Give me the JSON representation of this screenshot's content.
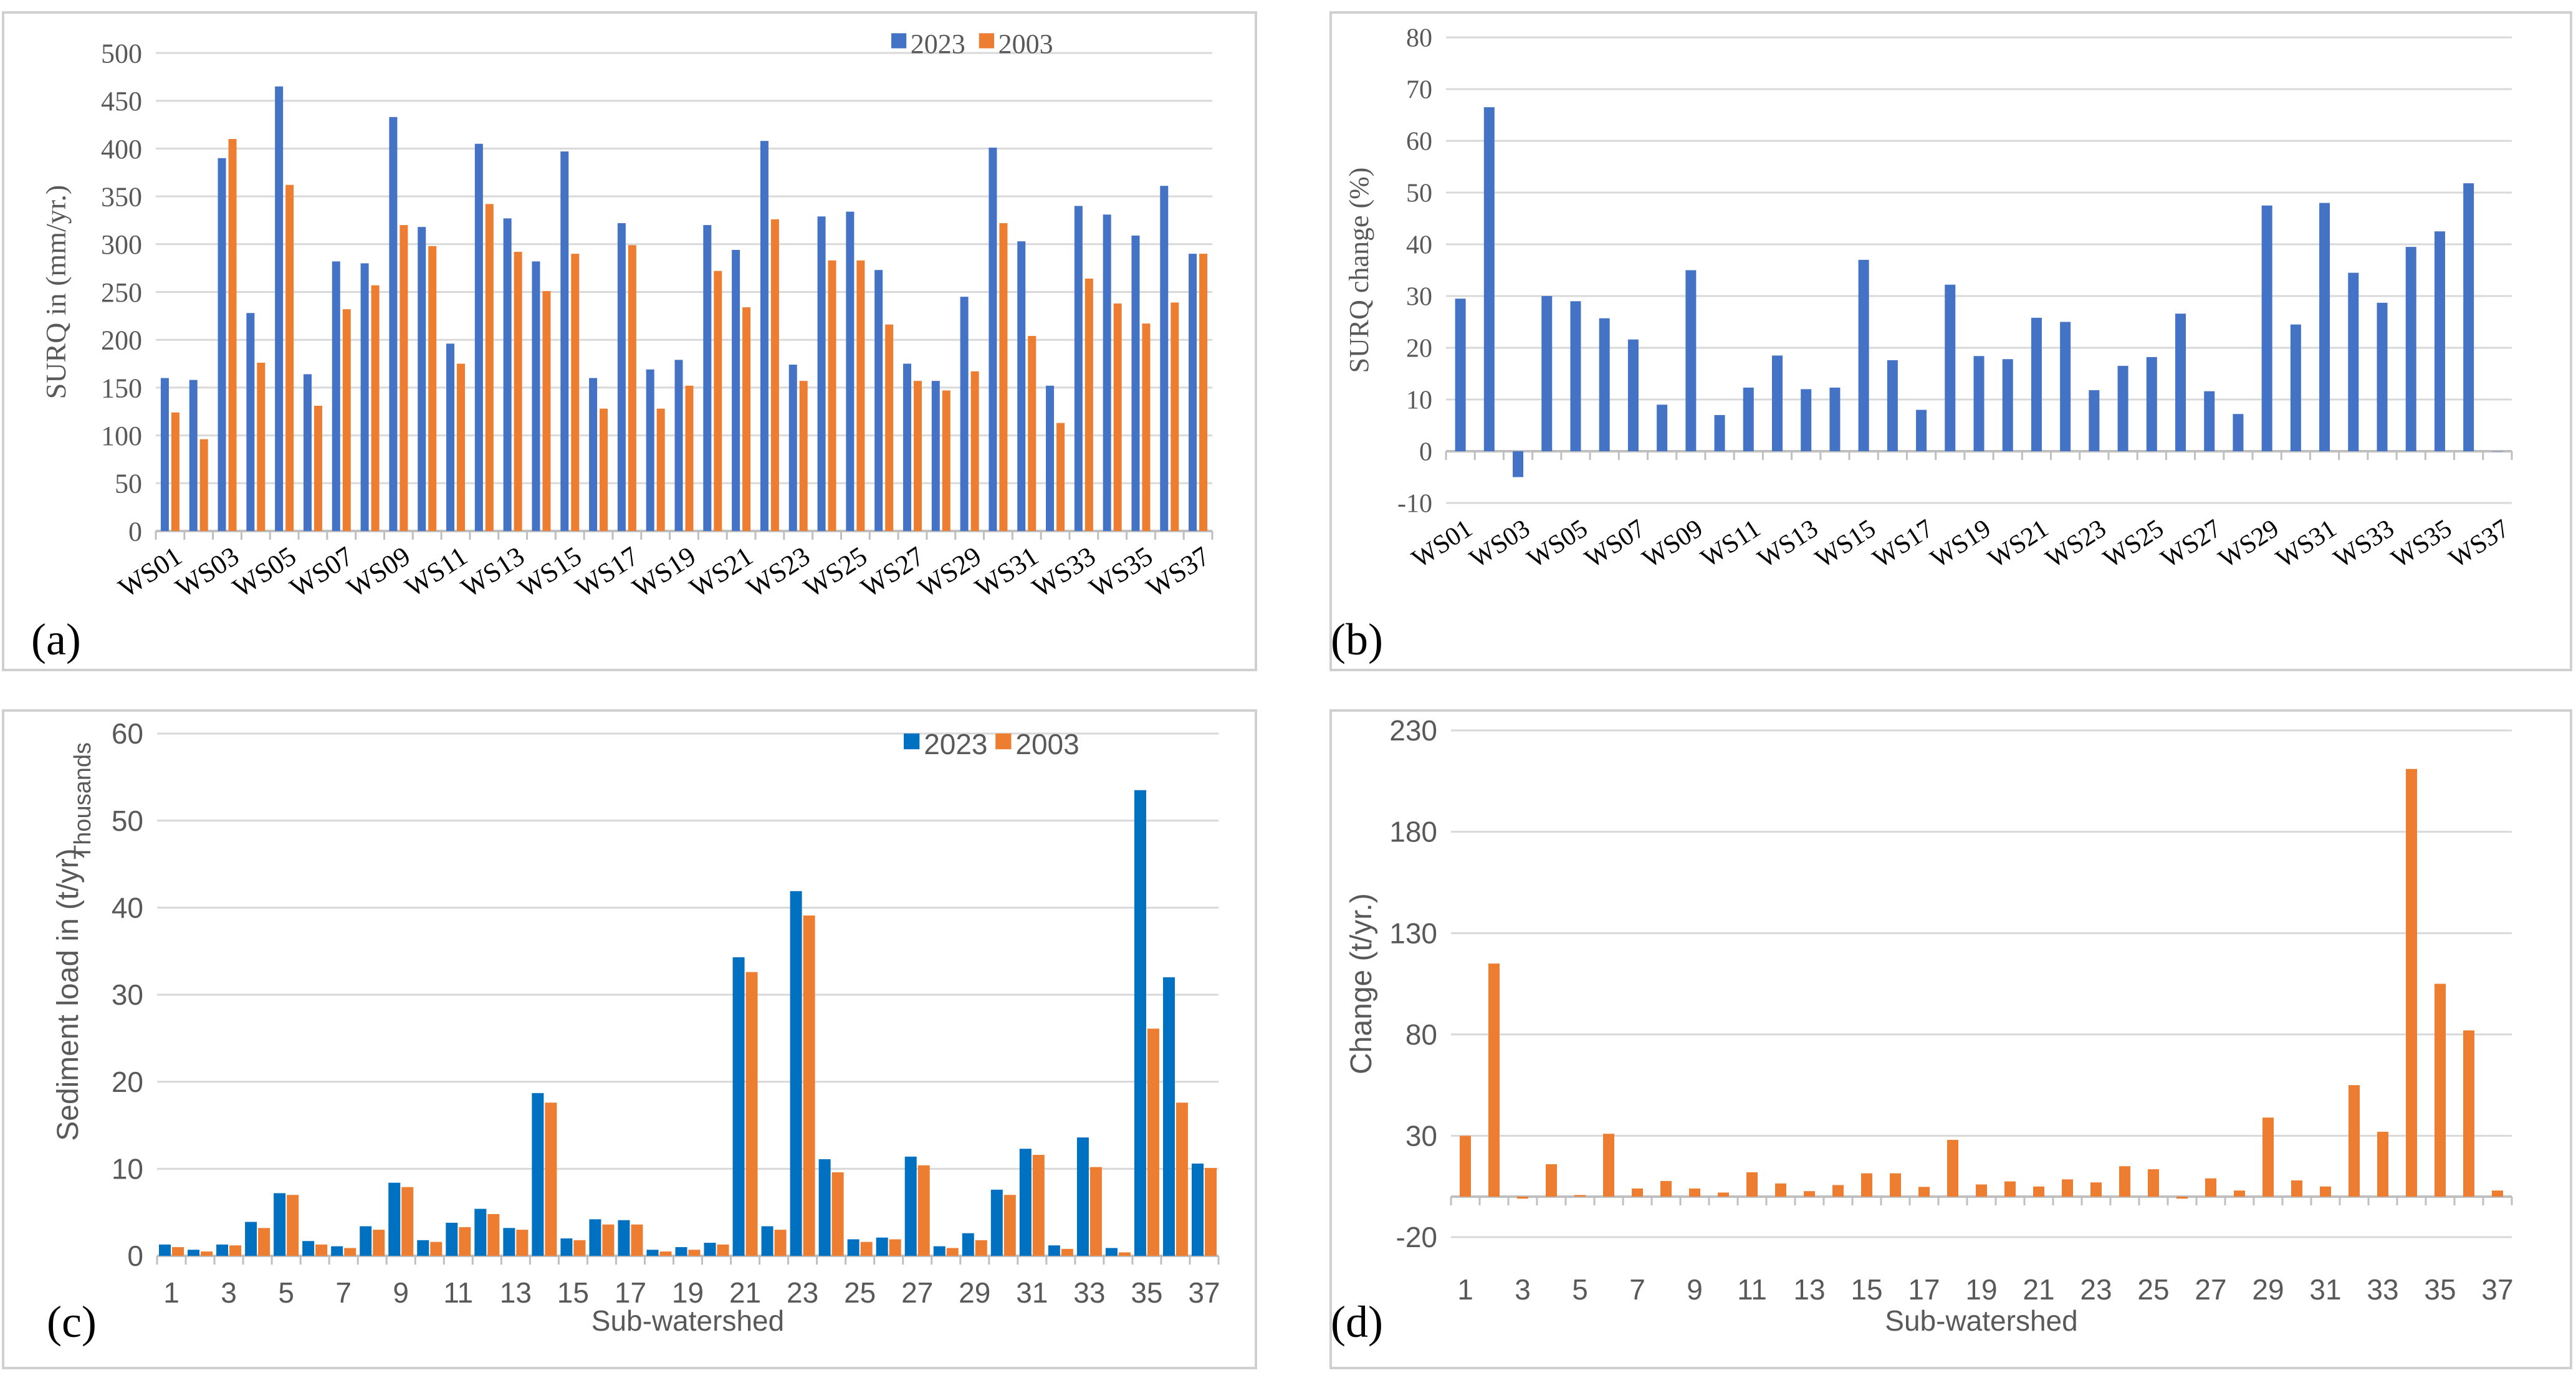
{
  "panels": {
    "a": "(a)",
    "b": "(b)",
    "c": "(c)",
    "d": "(d)"
  },
  "colors": {
    "series2023a": "#4472C4",
    "series2003": "#ED7D31",
    "series2023c": "#0070C0",
    "frame": "#D0D0D0",
    "gridline": "#D9D9D9",
    "axis": "#BFBFBF",
    "text": "#595959"
  },
  "chart_data": [
    {
      "id": "a",
      "type": "bar",
      "ylabel": "SURQ in  (mm/yr.)",
      "xlabel": "",
      "ylim": [
        0,
        500
      ],
      "yticks": [
        0,
        50,
        100,
        150,
        200,
        250,
        300,
        350,
        400,
        450,
        500
      ],
      "grid": true,
      "legend": "top-right",
      "tick_labels": [
        "WS01",
        "WS03",
        "WS05",
        "WS07",
        "WS09",
        "WS11",
        "WS13",
        "WS15",
        "WS17",
        "WS19",
        "WS21",
        "WS23",
        "WS25",
        "WS27",
        "WS29",
        "WS31",
        "WS33",
        "WS35",
        "WS37"
      ],
      "categories": [
        "WS01",
        "WS02",
        "WS03",
        "WS04",
        "WS05",
        "WS06",
        "WS07",
        "WS08",
        "WS09",
        "WS10",
        "WS11",
        "WS12",
        "WS13",
        "WS14",
        "WS15",
        "WS16",
        "WS17",
        "WS18",
        "WS19",
        "WS20",
        "WS21",
        "WS22",
        "WS23",
        "WS24",
        "WS25",
        "WS26",
        "WS27",
        "WS28",
        "WS29",
        "WS30",
        "WS31",
        "WS32",
        "WS33",
        "WS34",
        "WS35",
        "WS36",
        "WS37"
      ],
      "series": [
        {
          "name": "2023",
          "values": [
            160,
            158,
            390,
            228,
            465,
            164,
            282,
            280,
            433,
            318,
            196,
            405,
            327,
            282,
            397,
            160,
            322,
            169,
            179,
            320,
            294,
            408,
            174,
            329,
            334,
            273,
            175,
            157,
            245,
            401,
            303,
            152,
            340,
            331,
            309,
            361,
            290
          ]
        },
        {
          "name": "2003",
          "values": [
            124,
            96,
            410,
            176,
            362,
            131,
            232,
            257,
            320,
            298,
            175,
            342,
            292,
            251,
            290,
            128,
            299,
            128,
            152,
            272,
            234,
            326,
            157,
            283,
            283,
            216,
            157,
            147,
            167,
            322,
            204,
            113,
            264,
            238,
            217,
            239,
            290
          ]
        }
      ]
    },
    {
      "id": "b",
      "type": "bar",
      "ylabel": "SURQ change (%)",
      "xlabel": "",
      "ylim": [
        -10,
        80
      ],
      "yticks": [
        -10,
        0,
        10,
        20,
        30,
        40,
        50,
        60,
        70,
        80
      ],
      "grid": true,
      "tick_labels": [
        "WS01",
        "WS03",
        "WS05",
        "WS07",
        "WS09",
        "WS11",
        "WS13",
        "WS15",
        "WS17",
        "WS19",
        "WS21",
        "WS23",
        "WS25",
        "WS27",
        "WS29",
        "WS31",
        "WS33",
        "WS35",
        "WS37"
      ],
      "categories": [
        "WS01",
        "WS02",
        "WS03",
        "WS04",
        "WS05",
        "WS06",
        "WS07",
        "WS08",
        "WS09",
        "WS10",
        "WS11",
        "WS12",
        "WS13",
        "WS14",
        "WS15",
        "WS16",
        "WS17",
        "WS18",
        "WS19",
        "WS20",
        "WS21",
        "WS22",
        "WS23",
        "WS24",
        "WS25",
        "WS26",
        "WS27",
        "WS28",
        "WS29",
        "WS30",
        "WS31",
        "WS32",
        "WS33",
        "WS34",
        "WS35",
        "WS36",
        "WS37"
      ],
      "series": [
        {
          "name": "SURQ change",
          "values": [
            29.5,
            66.5,
            -5,
            30,
            29,
            25.7,
            21.6,
            9,
            35,
            7,
            12.3,
            18.5,
            12,
            12.3,
            37,
            17.6,
            8,
            32.2,
            18.4,
            17.8,
            25.8,
            25,
            11.8,
            16.5,
            18.2,
            26.6,
            11.6,
            7.2,
            47.5,
            24.5,
            48,
            34.5,
            28.7,
            39.5,
            42.5,
            51.8,
            0
          ]
        }
      ]
    },
    {
      "id": "c",
      "type": "bar",
      "ylabel": "Sediment load in (t/yr)",
      "ylabel2": "Thousands",
      "xlabel": "Sub-watershed",
      "ylim": [
        0,
        60
      ],
      "yticks": [
        0,
        10,
        20,
        30,
        40,
        50,
        60
      ],
      "grid": true,
      "legend": "top-right",
      "tick_labels": [
        "1",
        "3",
        "5",
        "7",
        "9",
        "11",
        "13",
        "15",
        "17",
        "19",
        "21",
        "23",
        "25",
        "27",
        "29",
        "31",
        "33",
        "35",
        "37"
      ],
      "categories": [
        "1",
        "2",
        "3",
        "4",
        "5",
        "6",
        "7",
        "8",
        "9",
        "10",
        "11",
        "12",
        "13",
        "14",
        "15",
        "16",
        "17",
        "18",
        "19",
        "20",
        "21",
        "22",
        "23",
        "24",
        "25",
        "26",
        "27",
        "28",
        "29",
        "30",
        "31",
        "32",
        "33",
        "34",
        "35",
        "36",
        "37"
      ],
      "series": [
        {
          "name": "2023",
          "values": [
            1.3,
            0.7,
            1.3,
            3.9,
            7.2,
            1.7,
            1.1,
            3.4,
            8.4,
            1.8,
            3.8,
            5.4,
            3.2,
            18.7,
            2.0,
            4.2,
            4.1,
            0.7,
            1.0,
            1.5,
            34.3,
            3.4,
            41.9,
            11.1,
            1.9,
            2.1,
            11.4,
            1.1,
            2.6,
            7.6,
            12.3,
            1.2,
            13.6,
            0.9,
            53.5,
            32.0,
            10.6
          ]
        },
        {
          "name": "2003",
          "values": [
            1.0,
            0.5,
            1.2,
            3.2,
            7.0,
            1.3,
            0.9,
            3.0,
            7.9,
            1.6,
            3.3,
            4.8,
            3.0,
            17.6,
            1.8,
            3.6,
            3.6,
            0.5,
            0.7,
            1.3,
            32.6,
            3.0,
            39.1,
            9.6,
            1.6,
            1.9,
            10.4,
            0.9,
            1.8,
            7.0,
            11.6,
            0.8,
            10.2,
            0.4,
            26.1,
            17.6,
            10.1
          ]
        }
      ]
    },
    {
      "id": "d",
      "type": "bar",
      "ylabel": "Change (t/yr.)",
      "xlabel": "Sub-watershed",
      "ylim": [
        -20,
        230
      ],
      "yticks": [
        -20,
        30,
        80,
        130,
        180,
        230
      ],
      "grid": true,
      "tick_labels": [
        "1",
        "3",
        "5",
        "7",
        "9",
        "11",
        "13",
        "15",
        "17",
        "19",
        "21",
        "23",
        "25",
        "27",
        "29",
        "31",
        "33",
        "35",
        "37"
      ],
      "categories": [
        "1",
        "2",
        "3",
        "4",
        "5",
        "6",
        "7",
        "8",
        "9",
        "10",
        "11",
        "12",
        "13",
        "14",
        "15",
        "16",
        "17",
        "18",
        "19",
        "20",
        "21",
        "22",
        "23",
        "24",
        "25",
        "26",
        "27",
        "28",
        "29",
        "30",
        "31",
        "32",
        "33",
        "34",
        "35",
        "36",
        "37"
      ],
      "series": [
        {
          "name": "Change",
          "values": [
            30,
            115,
            -1,
            16,
            0.8,
            31,
            4,
            7.7,
            4,
            2,
            12,
            6.5,
            2.7,
            5.7,
            11.5,
            11.5,
            4.8,
            28,
            6,
            7.5,
            5,
            8.5,
            7,
            15,
            13.5,
            -1,
            9,
            3,
            39,
            8,
            5,
            55,
            32,
            211,
            105,
            82,
            3
          ]
        }
      ]
    }
  ]
}
